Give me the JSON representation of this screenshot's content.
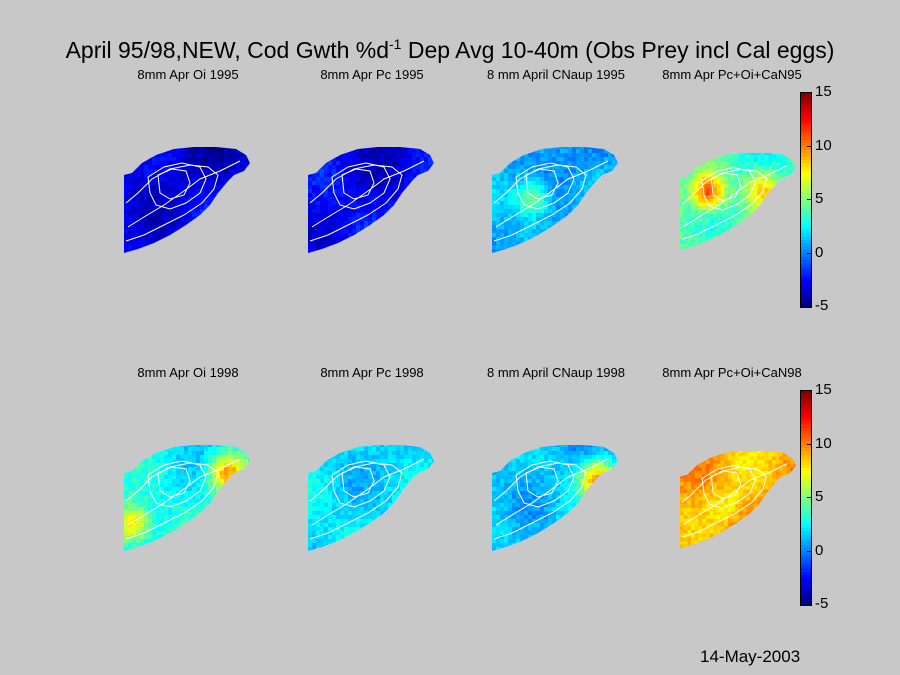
{
  "figure": {
    "title_main": "April 95/98,NEW, Cod Gwth %d",
    "title_sup": "-1",
    "title_rest": " Dep Avg 10-40m (Obs Prey incl Cal eggs)",
    "date": "14-May-2003"
  },
  "chart_data": {
    "type": "heatmap",
    "colorbar": {
      "ticks": [
        15,
        10,
        5,
        0,
        -5
      ],
      "range": [
        -5,
        15
      ],
      "colormap": "jet"
    },
    "panels": [
      {
        "title": "8mm Apr Oi 1995",
        "base": -3.0,
        "hotspots": []
      },
      {
        "title": "8mm Apr Pc 1995",
        "base": -2.6,
        "hotspots": []
      },
      {
        "title": "8 mm April CNaup 1995",
        "base": 0.8,
        "hotspots": [
          {
            "u": 0.3,
            "v": 0.45,
            "val": 5.5
          }
        ]
      },
      {
        "title": "8mm Apr Pc+Oi+CaN95",
        "base": 3.8,
        "hotspots": [
          {
            "u": 0.22,
            "v": 0.38,
            "val": 11.5
          },
          {
            "u": 0.68,
            "v": 0.35,
            "val": 8.0
          }
        ]
      },
      {
        "title": "8mm Apr Oi 1998",
        "base": 2.6,
        "hotspots": [
          {
            "u": 0.05,
            "v": 0.7,
            "val": 8.5
          },
          {
            "u": 0.78,
            "v": 0.25,
            "val": 9.5
          }
        ]
      },
      {
        "title": "8mm Apr Pc 1998",
        "base": 2.0,
        "hotspots": []
      },
      {
        "title": "8 mm April CNaup 1998",
        "base": 1.5,
        "hotspots": [
          {
            "u": 0.8,
            "v": 0.3,
            "val": 9.5
          }
        ]
      },
      {
        "title": "8mm Apr Pc+Oi+CaN98",
        "base": 9.2,
        "hotspots": [
          {
            "u": 0.38,
            "v": 0.55,
            "val": 7.5
          }
        ]
      }
    ]
  },
  "colors": {
    "background": "#c8c8c8",
    "contour": "#ffffff"
  }
}
